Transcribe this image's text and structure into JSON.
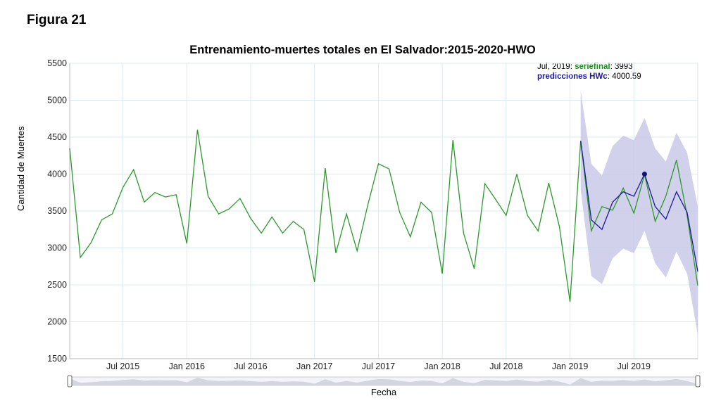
{
  "figure_label": "Figura 21",
  "chart_data": {
    "type": "line",
    "title": "Entrenamiento-muertes totales en El Salvador:2015-2020-HWO",
    "xlabel": "Fecha",
    "ylabel": "Cantidad de Muertes",
    "ylim": [
      1500,
      5500
    ],
    "yticks": [
      1500,
      2000,
      2500,
      3000,
      3500,
      4000,
      4500,
      5000,
      5500
    ],
    "xticks": [
      "Jul 2015",
      "Jan 2016",
      "Jul 2016",
      "Jan 2017",
      "Jul 2017",
      "Jan 2018",
      "Jul 2018",
      "Jan 2019",
      "Jul 2019"
    ],
    "x_start": "Feb 2015",
    "x_end": "Dec 2019",
    "grid": true,
    "series": [
      {
        "name": "seriefinal",
        "color": "#2a9a2a",
        "values": [
          4350,
          2870,
          3070,
          3380,
          3460,
          3820,
          4060,
          3620,
          3750,
          3690,
          3720,
          3060,
          4600,
          3700,
          3460,
          3530,
          3670,
          3400,
          3200,
          3420,
          3200,
          3360,
          3250,
          2540,
          4080,
          2930,
          3460,
          2960,
          3580,
          4140,
          4070,
          3480,
          3150,
          3620,
          3480,
          2650,
          4460,
          3200,
          2720,
          3870,
          3660,
          3440,
          4000,
          3440,
          3230,
          3880,
          3290,
          2270,
          4450,
          3230,
          3560,
          3510,
          3810,
          3470,
          3993,
          3360,
          3700,
          4190,
          3440,
          2490
        ]
      },
      {
        "name": "predicciones HWc",
        "color": "#1a1a9a",
        "start_index": 48,
        "values": [
          4450,
          3380,
          3250,
          3620,
          3760,
          3700,
          4000.59,
          3560,
          3390,
          3760,
          3480,
          2680
        ]
      }
    ],
    "confidence_band": {
      "color": "#c9c9e8",
      "start_index": 48,
      "upper": [
        5130,
        4140,
        3980,
        4380,
        4520,
        4460,
        4760,
        4350,
        4170,
        4560,
        4290,
        3560
      ],
      "lower": [
        3790,
        2620,
        2510,
        2860,
        2990,
        2930,
        3230,
        2790,
        2600,
        2950,
        2650,
        1830
      ]
    },
    "highlight": {
      "date": "Jul, 2019",
      "index": 54,
      "seriefinal": 3993,
      "predicciones HWc": 4000.59
    }
  }
}
